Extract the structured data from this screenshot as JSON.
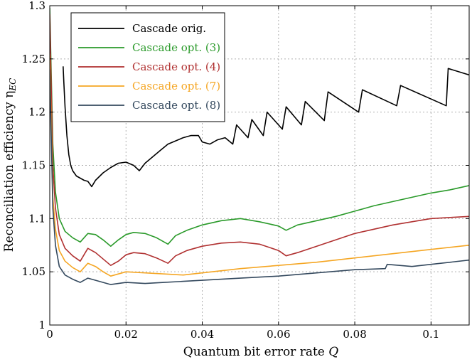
{
  "chart_data": {
    "type": "line",
    "xlabel": "Quantum bit error rate",
    "xlabel_var": "Q",
    "ylabel": "Reconciliation efficiency η",
    "ylabel_sub": "EC",
    "xlim": [
      0,
      0.11
    ],
    "ylim": [
      1,
      1.3
    ],
    "x_ticks": [
      0,
      0.02,
      0.04,
      0.06,
      0.08,
      0.1
    ],
    "x_tick_labels": [
      "0",
      "0.02",
      "0.04",
      "0.06",
      "0.08",
      "0.1"
    ],
    "y_ticks": [
      1,
      1.05,
      1.1,
      1.15,
      1.2,
      1.25,
      1.3
    ],
    "y_tick_labels": [
      "1",
      "1.05",
      "1.1",
      "1.15",
      "1.2",
      "1.25",
      "1.3"
    ],
    "grid": true,
    "legend_position": "top-left",
    "series": [
      {
        "name": "Cascade orig.",
        "color": "#000000",
        "x": [
          0.0035,
          0.0037,
          0.004,
          0.0045,
          0.005,
          0.0055,
          0.006,
          0.007,
          0.008,
          0.009,
          0.01,
          0.011,
          0.012,
          0.014,
          0.016,
          0.018,
          0.02,
          0.022,
          0.0235,
          0.025,
          0.027,
          0.029,
          0.031,
          0.033,
          0.035,
          0.037,
          0.039,
          0.04,
          0.042,
          0.044,
          0.046,
          0.048,
          0.049,
          0.052,
          0.053,
          0.056,
          0.057,
          0.061,
          0.062,
          0.066,
          0.067,
          0.072,
          0.073,
          0.081,
          0.082,
          0.091,
          0.092,
          0.104,
          0.1045,
          0.11
        ],
        "y": [
          1.243,
          1.228,
          1.205,
          1.178,
          1.16,
          1.15,
          1.145,
          1.14,
          1.138,
          1.136,
          1.135,
          1.13,
          1.136,
          1.143,
          1.148,
          1.152,
          1.153,
          1.15,
          1.145,
          1.152,
          1.158,
          1.164,
          1.17,
          1.173,
          1.176,
          1.178,
          1.178,
          1.172,
          1.17,
          1.174,
          1.176,
          1.17,
          1.188,
          1.176,
          1.193,
          1.178,
          1.2,
          1.184,
          1.205,
          1.188,
          1.21,
          1.192,
          1.219,
          1.2,
          1.221,
          1.206,
          1.225,
          1.206,
          1.241,
          1.235
        ]
      },
      {
        "name": "Cascade opt. (3)",
        "color": "#2a9a2a",
        "x": [
          0.0,
          0.0008,
          0.0015,
          0.0025,
          0.004,
          0.006,
          0.008,
          0.01,
          0.012,
          0.014,
          0.016,
          0.018,
          0.02,
          0.022,
          0.025,
          0.028,
          0.031,
          0.033,
          0.036,
          0.04,
          0.045,
          0.05,
          0.055,
          0.06,
          0.062,
          0.065,
          0.07,
          0.075,
          0.08,
          0.085,
          0.09,
          0.095,
          0.1,
          0.105,
          0.11
        ],
        "y": [
          1.298,
          1.17,
          1.125,
          1.1,
          1.088,
          1.082,
          1.078,
          1.086,
          1.085,
          1.08,
          1.074,
          1.08,
          1.085,
          1.087,
          1.086,
          1.082,
          1.076,
          1.084,
          1.089,
          1.094,
          1.098,
          1.1,
          1.097,
          1.093,
          1.089,
          1.094,
          1.098,
          1.102,
          1.107,
          1.112,
          1.116,
          1.12,
          1.124,
          1.127,
          1.131
        ]
      },
      {
        "name": "Cascade opt. (4)",
        "color": "#b03030",
        "x": [
          0.0,
          0.0008,
          0.0015,
          0.0025,
          0.004,
          0.006,
          0.008,
          0.01,
          0.012,
          0.014,
          0.016,
          0.018,
          0.02,
          0.022,
          0.025,
          0.028,
          0.031,
          0.033,
          0.036,
          0.04,
          0.045,
          0.05,
          0.055,
          0.06,
          0.062,
          0.065,
          0.07,
          0.075,
          0.08,
          0.085,
          0.09,
          0.095,
          0.1,
          0.105,
          0.11
        ],
        "y": [
          1.292,
          1.15,
          1.11,
          1.085,
          1.072,
          1.065,
          1.06,
          1.072,
          1.068,
          1.062,
          1.056,
          1.06,
          1.066,
          1.068,
          1.067,
          1.063,
          1.058,
          1.065,
          1.07,
          1.074,
          1.077,
          1.078,
          1.076,
          1.07,
          1.065,
          1.068,
          1.074,
          1.08,
          1.086,
          1.09,
          1.094,
          1.097,
          1.1,
          1.101,
          1.102
        ]
      },
      {
        "name": "Cascade opt. (7)",
        "color": "#f5a623",
        "x": [
          0.0,
          0.0008,
          0.0015,
          0.0025,
          0.004,
          0.006,
          0.008,
          0.01,
          0.012,
          0.014,
          0.016,
          0.018,
          0.02,
          0.025,
          0.03,
          0.035,
          0.04,
          0.045,
          0.05,
          0.06,
          0.07,
          0.08,
          0.09,
          0.1,
          0.11
        ],
        "y": [
          1.255,
          1.12,
          1.09,
          1.07,
          1.06,
          1.054,
          1.05,
          1.058,
          1.055,
          1.05,
          1.046,
          1.048,
          1.05,
          1.049,
          1.048,
          1.047,
          1.049,
          1.051,
          1.053,
          1.056,
          1.059,
          1.063,
          1.067,
          1.071,
          1.075
        ]
      },
      {
        "name": "Cascade opt. (8)",
        "color": "#34495e",
        "x": [
          0.0,
          0.0008,
          0.0015,
          0.0025,
          0.004,
          0.006,
          0.008,
          0.01,
          0.012,
          0.014,
          0.016,
          0.018,
          0.02,
          0.025,
          0.03,
          0.035,
          0.04,
          0.045,
          0.05,
          0.06,
          0.07,
          0.08,
          0.088,
          0.0885,
          0.095,
          0.1,
          0.11
        ],
        "y": [
          1.24,
          1.11,
          1.075,
          1.055,
          1.047,
          1.043,
          1.04,
          1.044,
          1.042,
          1.04,
          1.038,
          1.039,
          1.04,
          1.039,
          1.04,
          1.041,
          1.042,
          1.043,
          1.044,
          1.046,
          1.049,
          1.052,
          1.053,
          1.057,
          1.055,
          1.057,
          1.061
        ]
      }
    ]
  }
}
